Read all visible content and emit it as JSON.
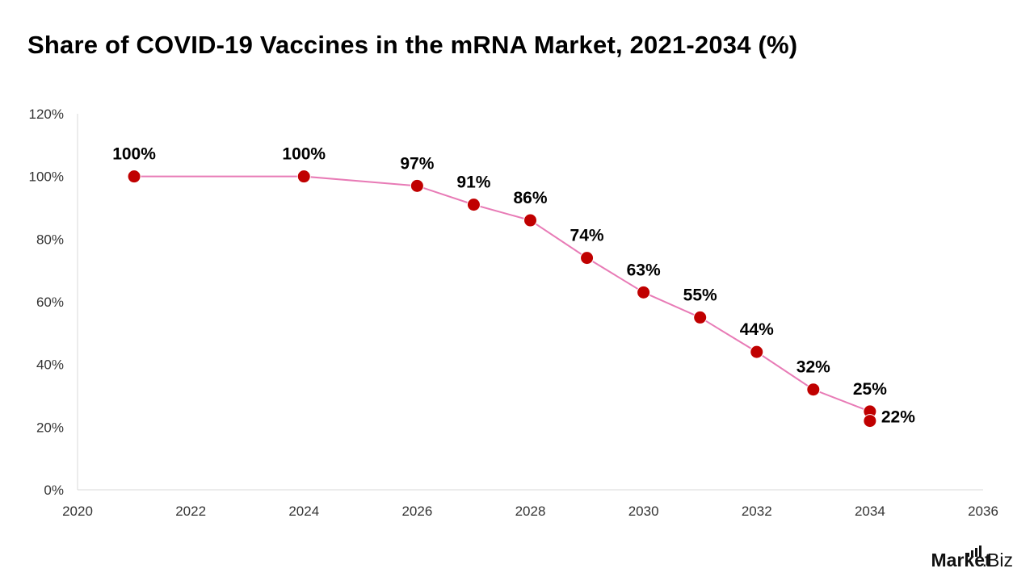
{
  "title": "Share of COVID-19 Vaccines in the mRNA Market, 2021-2034  (%)",
  "logo": {
    "part1": "Market",
    "part2": ".Biz"
  },
  "colors": {
    "line": "#e87bb6",
    "marker": "#c00000",
    "axis": "#d9d9d9",
    "text": "#000000"
  },
  "chart_data": {
    "type": "scatter",
    "x_ticks": [
      "2020",
      "2022",
      "2024",
      "2026",
      "2028",
      "2030",
      "2032",
      "2034",
      "2036"
    ],
    "y_ticks": [
      "0%",
      "20%",
      "40%",
      "60%",
      "80%",
      "100%",
      "120%"
    ],
    "xlim": [
      2020,
      2036
    ],
    "ylim": [
      0,
      120
    ],
    "grid": false,
    "points": [
      {
        "x": 2021,
        "y": 100,
        "label": "100%"
      },
      {
        "x": 2024,
        "y": 100,
        "label": "100%"
      },
      {
        "x": 2026,
        "y": 97,
        "label": "97%"
      },
      {
        "x": 2027,
        "y": 91,
        "label": "91%"
      },
      {
        "x": 2028,
        "y": 86,
        "label": "86%"
      },
      {
        "x": 2029,
        "y": 74,
        "label": "74%"
      },
      {
        "x": 2030,
        "y": 63,
        "label": "63%"
      },
      {
        "x": 2031,
        "y": 55,
        "label": "55%"
      },
      {
        "x": 2032,
        "y": 44,
        "label": "44%"
      },
      {
        "x": 2033,
        "y": 32,
        "label": "32%"
      },
      {
        "x": 2034,
        "y": 25,
        "label": "25%"
      },
      {
        "x": 2034,
        "y": 22,
        "label": "22%"
      }
    ]
  }
}
